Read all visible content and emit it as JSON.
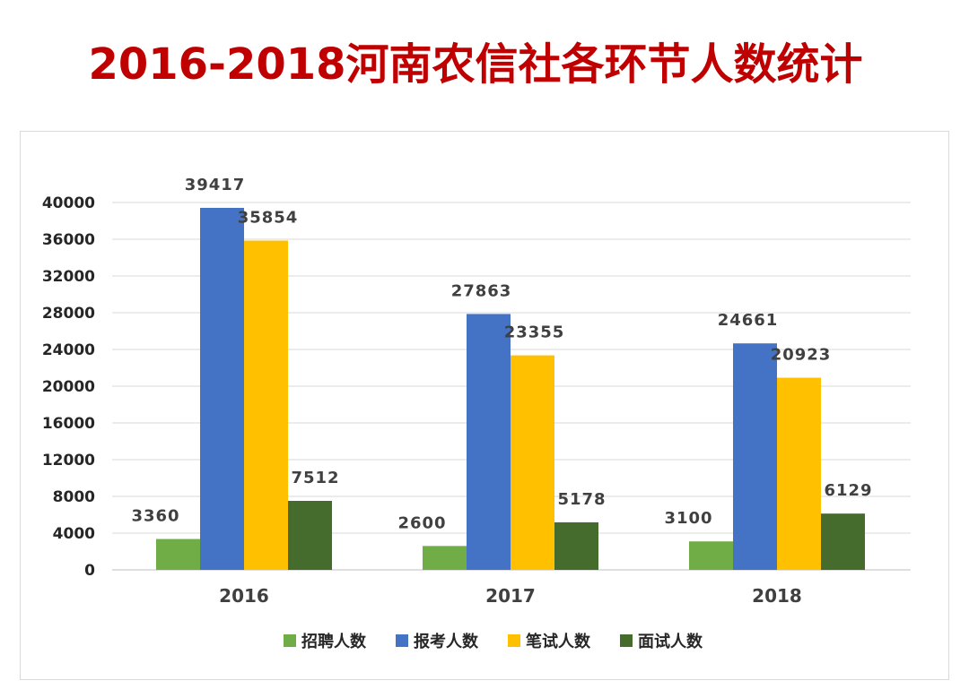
{
  "title": "2016-2018河南农信社各环节人数统计",
  "chart_data": {
    "type": "bar",
    "title": "2016-2018河南农信社各环节人数统计",
    "categories": [
      "2016",
      "2017",
      "2018"
    ],
    "series": [
      {
        "name": "招聘人数",
        "values": [
          3360,
          2600,
          3100
        ],
        "color": "#70ad47"
      },
      {
        "name": "报考人数",
        "values": [
          39417,
          27863,
          24661
        ],
        "color": "#4472c4"
      },
      {
        "name": "笔试人数",
        "values": [
          35854,
          23355,
          20923
        ],
        "color": "#ffc000"
      },
      {
        "name": "面试人数",
        "values": [
          7512,
          5178,
          6129
        ],
        "color": "#456c2c"
      }
    ],
    "yticks": [
      0,
      4000,
      8000,
      12000,
      16000,
      20000,
      24000,
      28000,
      32000,
      36000,
      40000
    ],
    "ylim": [
      0,
      40000
    ],
    "grid": true,
    "legend_position": "bottom",
    "data_labels": true
  }
}
